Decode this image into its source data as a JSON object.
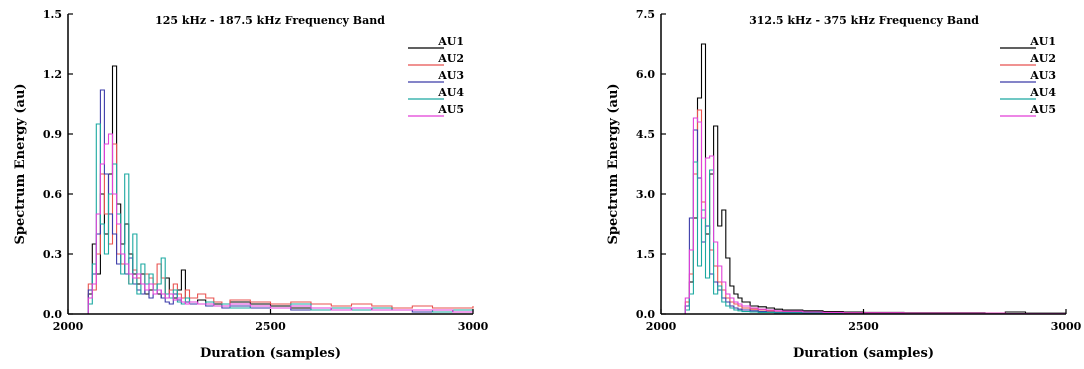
{
  "chart_data": [
    {
      "type": "line",
      "title": "125 kHz - 187.5 kHz Frequency Band",
      "xlabel": "Duration (samples)",
      "ylabel": "Spectrum Energy (au)",
      "xlim": [
        2000,
        3000
      ],
      "ylim": [
        0,
        1.5
      ],
      "xticks": [
        "2000",
        "2500",
        "3000"
      ],
      "yticks": [
        "0.0",
        "0.3",
        "0.6",
        "0.9",
        "1.2",
        "1.5"
      ],
      "grid": false,
      "legend_position": "top-right",
      "x": [
        2040,
        2050,
        2060,
        2070,
        2080,
        2090,
        2100,
        2110,
        2120,
        2130,
        2140,
        2150,
        2160,
        2170,
        2180,
        2190,
        2200,
        2210,
        2220,
        2230,
        2240,
        2250,
        2260,
        2270,
        2280,
        2290,
        2300,
        2320,
        2340,
        2360,
        2380,
        2400,
        2450,
        2500,
        2550,
        2600,
        2650,
        2700,
        2750,
        2800,
        2850,
        2900,
        2950,
        3000
      ],
      "series": [
        {
          "name": "AU1",
          "color": "#000000",
          "values": [
            0.0,
            0.1,
            0.35,
            0.2,
            0.6,
            0.4,
            0.7,
            1.24,
            0.55,
            0.35,
            0.45,
            0.3,
            0.2,
            0.15,
            0.2,
            0.1,
            0.12,
            0.15,
            0.1,
            0.08,
            0.18,
            0.1,
            0.08,
            0.12,
            0.22,
            0.08,
            0.06,
            0.07,
            0.05,
            0.05,
            0.04,
            0.06,
            0.05,
            0.04,
            0.03,
            0.03,
            0.03,
            0.02,
            0.03,
            0.02,
            0.02,
            0.02,
            0.01,
            0.02
          ]
        },
        {
          "name": "AU2",
          "color": "#e8524f",
          "values": [
            0.0,
            0.15,
            0.12,
            0.3,
            0.7,
            0.5,
            0.35,
            0.85,
            0.3,
            0.25,
            0.2,
            0.15,
            0.22,
            0.18,
            0.15,
            0.2,
            0.18,
            0.15,
            0.25,
            0.18,
            0.1,
            0.12,
            0.15,
            0.1,
            0.08,
            0.12,
            0.08,
            0.1,
            0.08,
            0.06,
            0.05,
            0.07,
            0.06,
            0.05,
            0.06,
            0.05,
            0.04,
            0.05,
            0.04,
            0.03,
            0.04,
            0.03,
            0.03,
            0.04
          ]
        },
        {
          "name": "AU3",
          "color": "#3a3aa8",
          "values": [
            0.0,
            0.12,
            0.2,
            0.4,
            1.12,
            0.7,
            0.5,
            0.4,
            0.25,
            0.3,
            0.2,
            0.28,
            0.15,
            0.12,
            0.1,
            0.15,
            0.08,
            0.1,
            0.12,
            0.08,
            0.06,
            0.05,
            0.1,
            0.07,
            0.05,
            0.06,
            0.05,
            0.05,
            0.04,
            0.04,
            0.03,
            0.04,
            0.03,
            0.03,
            0.02,
            0.03,
            0.02,
            0.02,
            0.02,
            0.02,
            0.01,
            0.02,
            0.01,
            0.01
          ]
        },
        {
          "name": "AU4",
          "color": "#1aa8a0",
          "values": [
            0.0,
            0.05,
            0.25,
            0.95,
            0.45,
            0.3,
            0.6,
            0.75,
            0.5,
            0.2,
            0.7,
            0.15,
            0.4,
            0.1,
            0.25,
            0.15,
            0.2,
            0.12,
            0.15,
            0.28,
            0.1,
            0.08,
            0.12,
            0.06,
            0.05,
            0.08,
            0.06,
            0.05,
            0.06,
            0.04,
            0.05,
            0.03,
            0.04,
            0.03,
            0.05,
            0.02,
            0.03,
            0.02,
            0.03,
            0.02,
            0.02,
            0.01,
            0.02,
            0.01
          ]
        },
        {
          "name": "AU5",
          "color": "#e23fd8",
          "values": [
            0.0,
            0.08,
            0.15,
            0.5,
            0.75,
            0.85,
            0.9,
            0.6,
            0.45,
            0.3,
            0.25,
            0.2,
            0.18,
            0.2,
            0.15,
            0.12,
            0.15,
            0.1,
            0.12,
            0.1,
            0.08,
            0.1,
            0.07,
            0.08,
            0.06,
            0.05,
            0.06,
            0.05,
            0.05,
            0.04,
            0.04,
            0.05,
            0.04,
            0.03,
            0.04,
            0.03,
            0.02,
            0.03,
            0.02,
            0.02,
            0.02,
            0.02,
            0.01,
            0.02
          ]
        }
      ]
    },
    {
      "type": "line",
      "title": "312.5 kHz - 375 kHz Frequency Band",
      "xlabel": "Duration (samples)",
      "ylabel": "Spectrum Energy (au)",
      "xlim": [
        2000,
        3000
      ],
      "ylim": [
        0,
        7.5
      ],
      "xticks": [
        "2000",
        "2500",
        "3000"
      ],
      "yticks": [
        "0.0",
        "1.5",
        "3.0",
        "4.5",
        "6.0",
        "7.5"
      ],
      "grid": false,
      "legend_position": "top-right",
      "x": [
        2050,
        2060,
        2070,
        2080,
        2090,
        2100,
        2110,
        2120,
        2130,
        2140,
        2150,
        2160,
        2170,
        2180,
        2190,
        2200,
        2220,
        2240,
        2260,
        2280,
        2300,
        2350,
        2400,
        2450,
        2500,
        2600,
        2700,
        2800,
        2850,
        2900,
        3000
      ],
      "series": [
        {
          "name": "AU1",
          "color": "#000000",
          "values": [
            0.0,
            0.2,
            0.8,
            2.4,
            5.4,
            6.75,
            2.0,
            3.5,
            4.7,
            2.2,
            2.6,
            1.4,
            0.7,
            0.5,
            0.4,
            0.3,
            0.2,
            0.18,
            0.15,
            0.12,
            0.1,
            0.08,
            0.06,
            0.05,
            0.04,
            0.03,
            0.03,
            0.02,
            0.05,
            0.02,
            0.01
          ]
        },
        {
          "name": "AU2",
          "color": "#e8524f",
          "values": [
            0.0,
            0.3,
            1.0,
            3.5,
            5.1,
            2.8,
            2.2,
            1.6,
            1.2,
            0.8,
            0.6,
            0.4,
            0.3,
            0.25,
            0.2,
            0.15,
            0.12,
            0.1,
            0.08,
            0.07,
            0.06,
            0.05,
            0.04,
            0.03,
            0.03,
            0.02,
            0.02,
            0.02,
            0.01,
            0.01,
            0.01
          ]
        },
        {
          "name": "AU3",
          "color": "#3a3aa8",
          "values": [
            0.0,
            0.2,
            2.4,
            4.6,
            3.4,
            1.8,
            2.2,
            1.0,
            0.8,
            0.6,
            0.4,
            0.3,
            0.2,
            0.15,
            0.12,
            0.1,
            0.08,
            0.06,
            0.05,
            0.04,
            0.04,
            0.03,
            0.02,
            0.02,
            0.02,
            0.01,
            0.01,
            0.01,
            0.01,
            0.01,
            0.01
          ]
        },
        {
          "name": "AU4",
          "color": "#1aa8a0",
          "values": [
            0.0,
            0.1,
            0.5,
            3.8,
            1.2,
            2.6,
            0.9,
            3.6,
            0.5,
            0.7,
            0.3,
            0.2,
            0.15,
            0.1,
            0.08,
            0.06,
            0.05,
            0.04,
            0.04,
            0.03,
            0.03,
            0.02,
            0.02,
            0.02,
            0.01,
            0.01,
            0.01,
            0.01,
            0.01,
            0.01,
            0.01
          ]
        },
        {
          "name": "AU5",
          "color": "#e23fd8",
          "values": [
            0.0,
            0.4,
            1.6,
            4.9,
            4.8,
            2.4,
            3.9,
            3.95,
            1.8,
            1.2,
            0.8,
            0.5,
            0.4,
            0.3,
            0.25,
            0.2,
            0.15,
            0.12,
            0.1,
            0.08,
            0.07,
            0.05,
            0.04,
            0.03,
            0.03,
            0.02,
            0.02,
            0.02,
            0.01,
            0.01,
            0.01
          ]
        }
      ]
    }
  ]
}
